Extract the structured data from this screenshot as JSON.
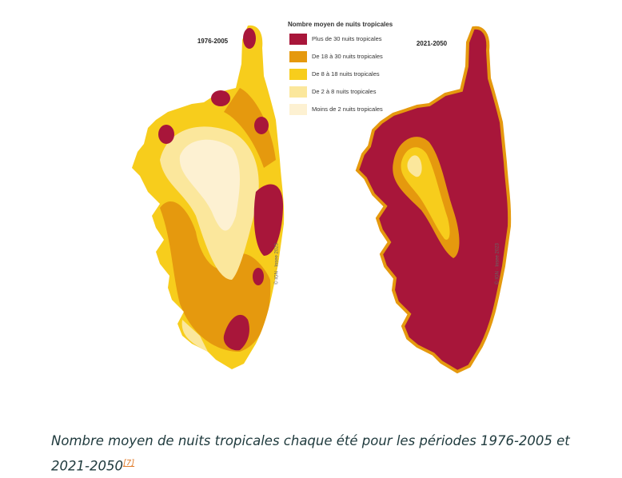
{
  "maps": [
    {
      "period": "1976-2005",
      "credit": "© IGN · Insee 2023"
    },
    {
      "period": "2021-2050",
      "credit": "© IGN · Insee 2023"
    }
  ],
  "legend": {
    "title": "Nombre moyen de nuits tropicales",
    "items": [
      {
        "label": "Plus de 30 nuits tropicales",
        "color": "#a8163a"
      },
      {
        "label": "De 18 à 30 nuits tropicales",
        "color": "#e5990e"
      },
      {
        "label": "De 8 à 18 nuits tropicales",
        "color": "#f7cd1c"
      },
      {
        "label": "De 2 à 8 nuits tropicales",
        "color": "#fbe79c"
      },
      {
        "label": "Moins de 2 nuits tropicales",
        "color": "#fdf1d2"
      }
    ]
  },
  "caption": {
    "text": "Nombre moyen de nuits tropicales chaque été pour les périodes 1976-2005 et 2021-2050",
    "footnote": "[7]"
  }
}
